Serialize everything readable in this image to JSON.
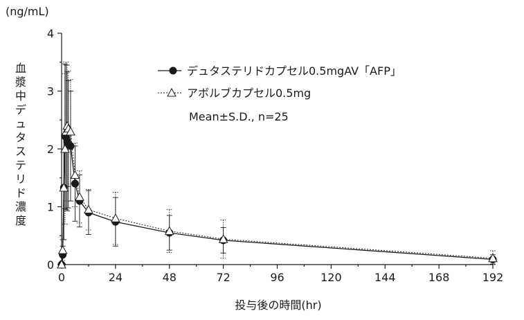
{
  "chart_data": {
    "type": "line",
    "y_unit": "(ng/mL)",
    "xlabel": "投与後の時間(hr)",
    "ylabel": "血漿中デュタステリド濃度",
    "xlim": [
      0,
      192
    ],
    "ylim": [
      0,
      4
    ],
    "xticks": [
      0,
      24,
      48,
      72,
      96,
      120,
      144,
      168,
      192
    ],
    "yticks": [
      0,
      1,
      2,
      3,
      4
    ],
    "legend_position": "top-right",
    "note": "Mean±S.D., n=25",
    "series": [
      {
        "name": "デュタステリドカプセル0.5mgAV「AFP」",
        "marker": "filled-circle",
        "line": "solid",
        "points": [
          {
            "x": 0,
            "y": 0.0,
            "sd": 0.0
          },
          {
            "x": 0.5,
            "y": 0.17,
            "sd": 0.15
          },
          {
            "x": 1,
            "y": 1.33,
            "sd": 0.9
          },
          {
            "x": 1.5,
            "y": 2.22,
            "sd": 1.25
          },
          {
            "x": 2,
            "y": 2.2,
            "sd": 1.25
          },
          {
            "x": 2.5,
            "y": 2.13,
            "sd": 1.2
          },
          {
            "x": 3,
            "y": 2.08,
            "sd": 1.1
          },
          {
            "x": 4,
            "y": 2.05,
            "sd": 0.95
          },
          {
            "x": 6,
            "y": 1.4,
            "sd": 0.65
          },
          {
            "x": 8,
            "y": 1.1,
            "sd": 0.45
          },
          {
            "x": 12,
            "y": 0.9,
            "sd": 0.38
          },
          {
            "x": 24,
            "y": 0.74,
            "sd": 0.42
          },
          {
            "x": 48,
            "y": 0.55,
            "sd": 0.3
          },
          {
            "x": 72,
            "y": 0.42,
            "sd": 0.22
          },
          {
            "x": 192,
            "y": 0.09,
            "sd": 0.08
          }
        ]
      },
      {
        "name": "アボルブカプセル0.5mg",
        "marker": "open-triangle",
        "line": "dotted",
        "points": [
          {
            "x": 0,
            "y": 0.0,
            "sd": 0.0
          },
          {
            "x": 0.5,
            "y": 0.25,
            "sd": 0.18
          },
          {
            "x": 1,
            "y": 1.33,
            "sd": 0.9
          },
          {
            "x": 1.5,
            "y": 2.0,
            "sd": 1.3
          },
          {
            "x": 2,
            "y": 2.3,
            "sd": 1.2
          },
          {
            "x": 2.5,
            "y": 2.4,
            "sd": 1.05
          },
          {
            "x": 3,
            "y": 2.35,
            "sd": 1.0
          },
          {
            "x": 4,
            "y": 2.3,
            "sd": 0.9
          },
          {
            "x": 6,
            "y": 1.55,
            "sd": 0.55
          },
          {
            "x": 8,
            "y": 1.17,
            "sd": 0.45
          },
          {
            "x": 12,
            "y": 0.95,
            "sd": 0.35
          },
          {
            "x": 24,
            "y": 0.8,
            "sd": 0.45
          },
          {
            "x": 48,
            "y": 0.58,
            "sd": 0.37
          },
          {
            "x": 72,
            "y": 0.44,
            "sd": 0.33
          },
          {
            "x": 192,
            "y": 0.11,
            "sd": 0.13
          }
        ]
      }
    ]
  }
}
